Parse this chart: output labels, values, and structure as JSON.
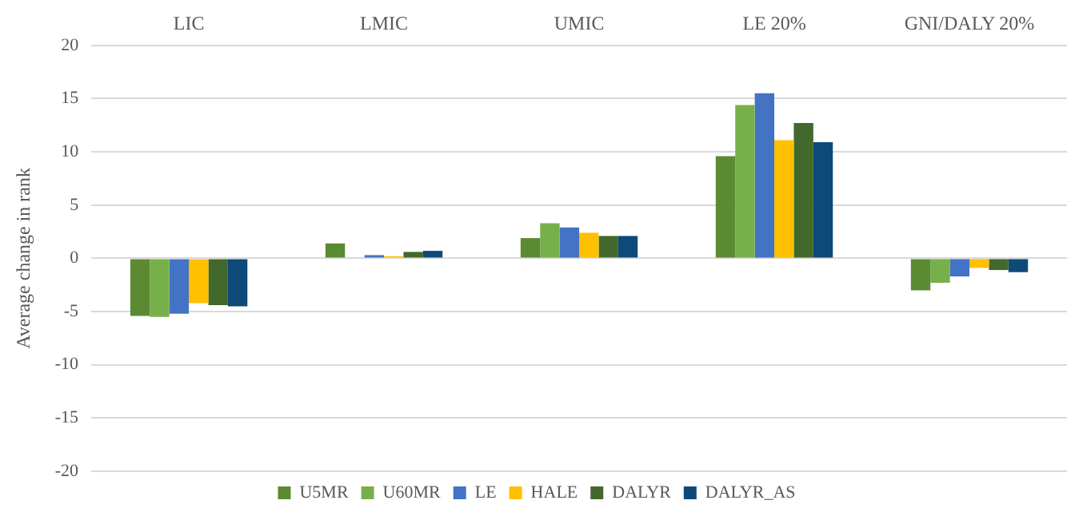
{
  "chart_data": {
    "type": "bar",
    "ylabel": "Average change in rank",
    "categories": [
      "LIC",
      "LMIC",
      "UMIC",
      "LE 20%",
      "GNI/DALY 20%"
    ],
    "series": [
      {
        "name": "U5MR",
        "color": "#5b8a32",
        "values": [
          -5.4,
          1.4,
          1.9,
          9.6,
          -3.0
        ]
      },
      {
        "name": "U60MR",
        "color": "#77b04a",
        "values": [
          -5.5,
          0,
          3.3,
          14.4,
          -2.3
        ]
      },
      {
        "name": "LE",
        "color": "#4472c4",
        "values": [
          -5.2,
          0.3,
          2.9,
          15.5,
          -1.7
        ]
      },
      {
        "name": "HALE",
        "color": "#ffc000",
        "values": [
          -4.2,
          0.2,
          2.4,
          11.1,
          -0.9
        ]
      },
      {
        "name": "DALYR",
        "color": "#43682b",
        "values": [
          -4.4,
          0.6,
          2.1,
          12.7,
          -1.1
        ]
      },
      {
        "name": "DALYR_AS",
        "color": "#0d4a7a",
        "values": [
          -4.5,
          0.7,
          2.1,
          10.9,
          -1.3
        ]
      }
    ],
    "ylim": [
      -20,
      20
    ],
    "yticks": [
      -20,
      -15,
      -10,
      -5,
      0,
      5,
      10,
      15,
      20
    ],
    "grid": "y",
    "legend": "bottom"
  }
}
